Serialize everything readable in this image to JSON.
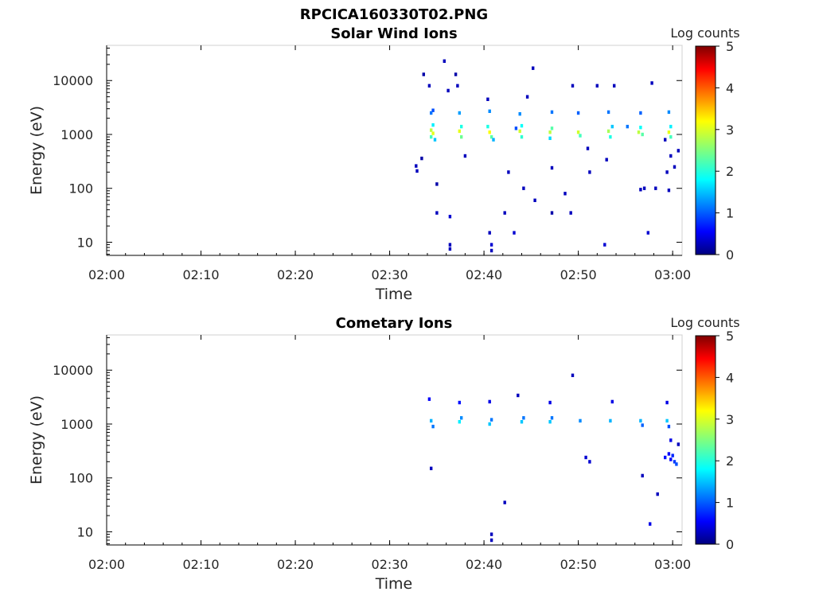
{
  "figure": {
    "title": "RPCICA160330T02.PNG"
  },
  "colorbar": {
    "label": "Log counts",
    "ticks": [
      "0",
      "1",
      "2",
      "3",
      "4",
      "5"
    ],
    "range": [
      0,
      5
    ],
    "colormap": "jet"
  },
  "chart_data": [
    {
      "type": "heatmap",
      "title": "Solar Wind Ions",
      "xlabel": "Time",
      "ylabel": "Energy (eV)",
      "x_tick_labels": [
        "02:00",
        "02:10",
        "02:20",
        "02:30",
        "02:40",
        "02:50",
        "03:00"
      ],
      "x_ticks_minutes": [
        0,
        10,
        20,
        30,
        40,
        50,
        60
      ],
      "xlim_minutes": [
        0,
        61
      ],
      "y_tick_labels": [
        "10",
        "100",
        "1000",
        "10000"
      ],
      "y_ticks": [
        10,
        100,
        1000,
        10000
      ],
      "yscale": "log",
      "ylim": [
        5.7,
        45000
      ],
      "cells": [
        {
          "t": 34.4,
          "e": 1200,
          "v": 2.8
        },
        {
          "t": 34.4,
          "e": 900,
          "v": 2.2
        },
        {
          "t": 34.6,
          "e": 1050,
          "v": 3.0
        },
        {
          "t": 34.8,
          "e": 800,
          "v": 1.6
        },
        {
          "t": 34.4,
          "e": 2500,
          "v": 1.2
        },
        {
          "t": 34.6,
          "e": 2800,
          "v": 1.0
        },
        {
          "t": 34.6,
          "e": 1500,
          "v": 1.8
        },
        {
          "t": 37.4,
          "e": 1150,
          "v": 3.0
        },
        {
          "t": 37.6,
          "e": 900,
          "v": 2.4
        },
        {
          "t": 37.4,
          "e": 2500,
          "v": 1.4
        },
        {
          "t": 37.6,
          "e": 1400,
          "v": 2.0
        },
        {
          "t": 40.6,
          "e": 1100,
          "v": 3.1
        },
        {
          "t": 40.8,
          "e": 900,
          "v": 2.3
        },
        {
          "t": 40.6,
          "e": 2700,
          "v": 1.3
        },
        {
          "t": 40.4,
          "e": 1400,
          "v": 2.0
        },
        {
          "t": 41.0,
          "e": 800,
          "v": 1.5
        },
        {
          "t": 43.8,
          "e": 1150,
          "v": 2.9
        },
        {
          "t": 44.0,
          "e": 900,
          "v": 2.1
        },
        {
          "t": 43.8,
          "e": 2400,
          "v": 1.3
        },
        {
          "t": 44.0,
          "e": 1450,
          "v": 1.9
        },
        {
          "t": 47.0,
          "e": 1100,
          "v": 2.8
        },
        {
          "t": 47.2,
          "e": 1300,
          "v": 2.3
        },
        {
          "t": 47.2,
          "e": 2600,
          "v": 1.2
        },
        {
          "t": 47.0,
          "e": 850,
          "v": 1.7
        },
        {
          "t": 50.0,
          "e": 1100,
          "v": 2.9
        },
        {
          "t": 50.2,
          "e": 950,
          "v": 2.2
        },
        {
          "t": 50.0,
          "e": 2500,
          "v": 1.1
        },
        {
          "t": 53.2,
          "e": 1150,
          "v": 2.7
        },
        {
          "t": 53.4,
          "e": 900,
          "v": 2.0
        },
        {
          "t": 53.2,
          "e": 2600,
          "v": 1.2
        },
        {
          "t": 53.6,
          "e": 1400,
          "v": 1.6
        },
        {
          "t": 56.4,
          "e": 1100,
          "v": 2.8
        },
        {
          "t": 56.8,
          "e": 1000,
          "v": 2.3
        },
        {
          "t": 56.6,
          "e": 1350,
          "v": 1.9
        },
        {
          "t": 56.6,
          "e": 2500,
          "v": 1.1
        },
        {
          "t": 59.6,
          "e": 1100,
          "v": 3.0
        },
        {
          "t": 59.8,
          "e": 900,
          "v": 2.2
        },
        {
          "t": 59.6,
          "e": 2600,
          "v": 1.3
        },
        {
          "t": 59.8,
          "e": 1400,
          "v": 1.8
        },
        {
          "t": 32.8,
          "e": 260,
          "v": 0.3
        },
        {
          "t": 32.9,
          "e": 210,
          "v": 0.3
        },
        {
          "t": 33.4,
          "e": 360,
          "v": 0.2
        },
        {
          "t": 33.6,
          "e": 13000,
          "v": 0.2
        },
        {
          "t": 34.2,
          "e": 8000,
          "v": 0.3
        },
        {
          "t": 35.0,
          "e": 120,
          "v": 0.2
        },
        {
          "t": 35.0,
          "e": 35,
          "v": 0.3
        },
        {
          "t": 35.8,
          "e": 23000,
          "v": 0.3
        },
        {
          "t": 36.2,
          "e": 6500,
          "v": 0.3
        },
        {
          "t": 36.4,
          "e": 30,
          "v": 0.4
        },
        {
          "t": 36.4,
          "e": 9,
          "v": 0.3
        },
        {
          "t": 36.4,
          "e": 7.5,
          "v": 0.3
        },
        {
          "t": 37.0,
          "e": 13000,
          "v": 0.2
        },
        {
          "t": 37.2,
          "e": 8000,
          "v": 0.3
        },
        {
          "t": 38.0,
          "e": 400,
          "v": 0.3
        },
        {
          "t": 40.4,
          "e": 4500,
          "v": 0.3
        },
        {
          "t": 40.6,
          "e": 15,
          "v": 0.3
        },
        {
          "t": 40.8,
          "e": 9,
          "v": 0.4
        },
        {
          "t": 40.8,
          "e": 7,
          "v": 0.3
        },
        {
          "t": 42.2,
          "e": 35,
          "v": 0.3
        },
        {
          "t": 42.6,
          "e": 200,
          "v": 0.3
        },
        {
          "t": 43.2,
          "e": 15,
          "v": 0.4
        },
        {
          "t": 43.4,
          "e": 1300,
          "v": 1.0
        },
        {
          "t": 44.2,
          "e": 100,
          "v": 0.3
        },
        {
          "t": 44.6,
          "e": 5000,
          "v": 0.3
        },
        {
          "t": 45.4,
          "e": 60,
          "v": 0.3
        },
        {
          "t": 45.2,
          "e": 17000,
          "v": 0.3
        },
        {
          "t": 47.2,
          "e": 35,
          "v": 0.2
        },
        {
          "t": 47.2,
          "e": 240,
          "v": 0.3
        },
        {
          "t": 48.6,
          "e": 80,
          "v": 0.3
        },
        {
          "t": 49.2,
          "e": 35,
          "v": 0.3
        },
        {
          "t": 49.4,
          "e": 8000,
          "v": 0.3
        },
        {
          "t": 51.0,
          "e": 550,
          "v": 0.3
        },
        {
          "t": 51.2,
          "e": 200,
          "v": 0.3
        },
        {
          "t": 52.0,
          "e": 8000,
          "v": 0.3
        },
        {
          "t": 52.8,
          "e": 9,
          "v": 0.4
        },
        {
          "t": 53.0,
          "e": 340,
          "v": 0.3
        },
        {
          "t": 53.8,
          "e": 8000,
          "v": 0.3
        },
        {
          "t": 55.2,
          "e": 1400,
          "v": 1.2
        },
        {
          "t": 56.6,
          "e": 95,
          "v": 0.3
        },
        {
          "t": 57.0,
          "e": 100,
          "v": 0.3
        },
        {
          "t": 57.4,
          "e": 15,
          "v": 0.4
        },
        {
          "t": 57.8,
          "e": 9000,
          "v": 0.3
        },
        {
          "t": 58.2,
          "e": 100,
          "v": 0.3
        },
        {
          "t": 59.2,
          "e": 800,
          "v": 0.3
        },
        {
          "t": 59.4,
          "e": 200,
          "v": 0.3
        },
        {
          "t": 59.6,
          "e": 92,
          "v": 0.3
        },
        {
          "t": 59.8,
          "e": 400,
          "v": 0.3
        },
        {
          "t": 60.2,
          "e": 250,
          "v": 0.3
        },
        {
          "t": 60.6,
          "e": 500,
          "v": 0.3
        }
      ]
    },
    {
      "type": "heatmap",
      "title": "Cometary Ions",
      "xlabel": "Time",
      "ylabel": "Energy (eV)",
      "x_tick_labels": [
        "02:00",
        "02:10",
        "02:20",
        "02:30",
        "02:40",
        "02:50",
        "03:00"
      ],
      "x_ticks_minutes": [
        0,
        10,
        20,
        30,
        40,
        50,
        60
      ],
      "xlim_minutes": [
        0,
        61
      ],
      "y_tick_labels": [
        "10",
        "100",
        "1000",
        "10000"
      ],
      "y_ticks": [
        10,
        100,
        1000,
        10000
      ],
      "yscale": "log",
      "ylim": [
        5.7,
        45000
      ],
      "cells": [
        {
          "t": 34.4,
          "e": 1150,
          "v": 1.5
        },
        {
          "t": 34.6,
          "e": 900,
          "v": 1.2
        },
        {
          "t": 34.2,
          "e": 2900,
          "v": 0.6
        },
        {
          "t": 34.4,
          "e": 150,
          "v": 0.3
        },
        {
          "t": 37.4,
          "e": 1100,
          "v": 1.8
        },
        {
          "t": 37.6,
          "e": 1300,
          "v": 1.3
        },
        {
          "t": 37.4,
          "e": 2500,
          "v": 0.7
        },
        {
          "t": 40.6,
          "e": 1000,
          "v": 1.6
        },
        {
          "t": 40.8,
          "e": 1200,
          "v": 1.2
        },
        {
          "t": 40.6,
          "e": 2600,
          "v": 0.5
        },
        {
          "t": 40.8,
          "e": 9,
          "v": 0.3
        },
        {
          "t": 40.8,
          "e": 7,
          "v": 0.3
        },
        {
          "t": 43.6,
          "e": 3400,
          "v": 0.3
        },
        {
          "t": 44.0,
          "e": 1100,
          "v": 1.6
        },
        {
          "t": 44.2,
          "e": 1300,
          "v": 1.2
        },
        {
          "t": 47.0,
          "e": 1100,
          "v": 1.6
        },
        {
          "t": 47.2,
          "e": 1300,
          "v": 1.2
        },
        {
          "t": 47.0,
          "e": 2500,
          "v": 0.5
        },
        {
          "t": 49.4,
          "e": 8000,
          "v": 0.3
        },
        {
          "t": 50.2,
          "e": 1150,
          "v": 1.3
        },
        {
          "t": 50.8,
          "e": 240,
          "v": 0.4
        },
        {
          "t": 51.2,
          "e": 200,
          "v": 0.4
        },
        {
          "t": 53.4,
          "e": 1150,
          "v": 1.5
        },
        {
          "t": 53.6,
          "e": 2600,
          "v": 0.5
        },
        {
          "t": 56.6,
          "e": 1150,
          "v": 1.5
        },
        {
          "t": 56.8,
          "e": 950,
          "v": 1.1
        },
        {
          "t": 56.8,
          "e": 110,
          "v": 0.3
        },
        {
          "t": 57.6,
          "e": 14,
          "v": 0.5
        },
        {
          "t": 59.4,
          "e": 1150,
          "v": 1.6
        },
        {
          "t": 59.6,
          "e": 900,
          "v": 1.0
        },
        {
          "t": 59.4,
          "e": 2500,
          "v": 0.5
        },
        {
          "t": 58.4,
          "e": 50,
          "v": 0.3
        },
        {
          "t": 59.2,
          "e": 240,
          "v": 0.7
        },
        {
          "t": 59.6,
          "e": 280,
          "v": 0.6
        },
        {
          "t": 59.8,
          "e": 500,
          "v": 0.5
        },
        {
          "t": 60.0,
          "e": 260,
          "v": 0.8
        },
        {
          "t": 60.2,
          "e": 200,
          "v": 0.9
        },
        {
          "t": 60.4,
          "e": 180,
          "v": 1.0
        },
        {
          "t": 59.8,
          "e": 220,
          "v": 0.6
        },
        {
          "t": 60.6,
          "e": 420,
          "v": 0.3
        },
        {
          "t": 42.2,
          "e": 35,
          "v": 0.3
        }
      ]
    }
  ]
}
